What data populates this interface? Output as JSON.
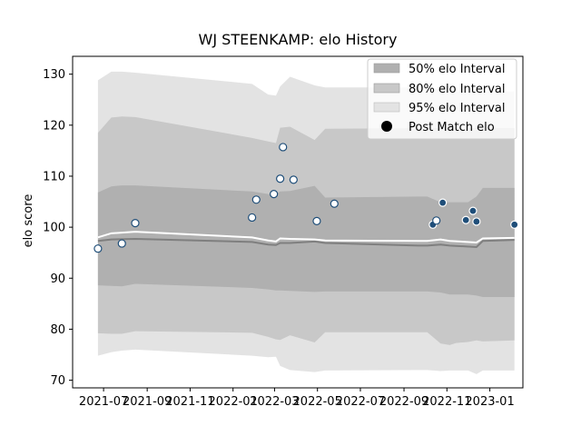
{
  "chart_data": {
    "type": "line",
    "title": "WJ STEENKAMP: elo History",
    "xlabel": "",
    "ylabel": "elo score",
    "ylim": [
      68.5,
      133.5
    ],
    "xlim": [
      "2021-05-18",
      "2023-02-17"
    ],
    "yticks": [
      70,
      80,
      90,
      100,
      110,
      120,
      130
    ],
    "xticks": [
      {
        "date": "2021-07-01",
        "label": "2021-07"
      },
      {
        "date": "2021-09-01",
        "label": "2021-09"
      },
      {
        "date": "2021-11-01",
        "label": "2021-11"
      },
      {
        "date": "2022-01-01",
        "label": "2022-01"
      },
      {
        "date": "2022-03-01",
        "label": "2022-03"
      },
      {
        "date": "2022-05-01",
        "label": "2022-05"
      },
      {
        "date": "2022-07-01",
        "label": "2022-07"
      },
      {
        "date": "2022-09-01",
        "label": "2022-09"
      },
      {
        "date": "2022-11-01",
        "label": "2022-11"
      },
      {
        "date": "2023-01-01",
        "label": "2023-01"
      }
    ],
    "grid": false,
    "legend_position": "upper-right",
    "legend": [
      {
        "label": "50% elo Interval",
        "kind": "band",
        "color": "#b0b0b0"
      },
      {
        "label": "80% elo Interval",
        "kind": "band",
        "color": "#c8c8c8"
      },
      {
        "label": "95% elo Interval",
        "kind": "band",
        "color": "#e3e3e3"
      },
      {
        "label": "Post Match elo",
        "kind": "marker",
        "color": "#000000"
      }
    ],
    "colors": {
      "band50": "#b0b0b0",
      "band80": "#c8c8c8",
      "band95": "#e3e3e3",
      "median_line": "#7f7f7f",
      "mean_line": "#ffffff",
      "marker_fill": "#ffffff",
      "marker_edge": "#1f4e79",
      "marker_filled": "#1f4e79"
    },
    "bands": {
      "dates": [
        "2021-06-23",
        "2021-07-12",
        "2021-07-27",
        "2021-08-15",
        "2022-01-28",
        "2022-02-20",
        "2022-03-03",
        "2022-03-09",
        "2022-03-23",
        "2022-04-27",
        "2022-05-12",
        "2022-09-21",
        "2022-10-04",
        "2022-10-23",
        "2022-11-05",
        "2022-11-14",
        "2022-12-01",
        "2022-12-13",
        "2022-12-22",
        "2023-02-05"
      ],
      "p95_upper": [
        128.8,
        130.5,
        130.5,
        130.3,
        128.1,
        126.0,
        125.8,
        127.6,
        129.5,
        127.8,
        127.4,
        127.4,
        127.4,
        127.0,
        126.6,
        126.6,
        126.6,
        126.6,
        126.6,
        126.6
      ],
      "p80_upper": [
        118.5,
        121.5,
        121.7,
        121.6,
        117.5,
        116.8,
        116.5,
        119.5,
        119.7,
        117.1,
        119.3,
        119.4,
        119.4,
        119.4,
        119.4,
        119.4,
        119.4,
        119.4,
        119.4,
        119.4
      ],
      "p50_upper": [
        106.8,
        108.0,
        108.2,
        108.2,
        107.0,
        106.5,
        106.5,
        107.0,
        107.1,
        108.1,
        105.8,
        106.0,
        106.0,
        104.9,
        104.9,
        104.9,
        104.9,
        106.0,
        107.7,
        107.7
      ],
      "p50_lower": [
        88.6,
        88.5,
        88.4,
        88.9,
        88.1,
        87.8,
        87.6,
        87.6,
        87.5,
        87.3,
        87.4,
        87.4,
        87.4,
        87.2,
        86.8,
        86.8,
        86.8,
        86.6,
        86.3,
        86.3
      ],
      "p80_lower": [
        79.2,
        79.1,
        79.1,
        79.6,
        79.3,
        78.5,
        78.0,
        77.9,
        78.8,
        77.4,
        79.4,
        79.4,
        79.4,
        77.2,
        76.9,
        77.3,
        77.5,
        77.8,
        77.6,
        77.8
      ],
      "p95_lower": [
        74.8,
        75.5,
        75.8,
        76.0,
        74.8,
        74.5,
        74.6,
        72.8,
        72.0,
        71.6,
        71.9,
        72.0,
        72.0,
        71.8,
        71.9,
        71.9,
        71.9,
        71.2,
        71.9,
        71.9
      ]
    },
    "median_line": {
      "dates": [
        "2021-06-23",
        "2021-07-12",
        "2021-08-15",
        "2022-01-28",
        "2022-02-20",
        "2022-03-03",
        "2022-03-09",
        "2022-03-23",
        "2022-04-27",
        "2022-05-12",
        "2022-09-21",
        "2022-10-04",
        "2022-10-23",
        "2022-11-05",
        "2022-12-13",
        "2022-12-22",
        "2023-02-05"
      ],
      "values": [
        97.3,
        97.6,
        97.7,
        97.1,
        96.6,
        96.5,
        96.9,
        96.9,
        97.2,
        96.9,
        96.4,
        96.4,
        96.6,
        96.4,
        96.1,
        97.3,
        97.5
      ]
    },
    "mean_line": {
      "dates": [
        "2021-06-23",
        "2021-07-12",
        "2021-08-15",
        "2022-01-28",
        "2022-02-20",
        "2022-03-03",
        "2022-03-09",
        "2022-03-23",
        "2022-04-27",
        "2022-05-12",
        "2022-09-21",
        "2022-10-04",
        "2022-10-23",
        "2022-11-05",
        "2022-12-13",
        "2022-12-22",
        "2023-02-05"
      ],
      "values": [
        98.0,
        98.8,
        99.1,
        98.0,
        97.4,
        97.2,
        97.8,
        97.7,
        97.6,
        97.4,
        97.3,
        97.3,
        97.6,
        97.3,
        97.0,
        97.8,
        97.9
      ]
    },
    "series": [
      {
        "name": "Post Match elo",
        "points": [
          {
            "date": "2021-06-23",
            "y": 95.8,
            "filled": false
          },
          {
            "date": "2021-07-27",
            "y": 96.8,
            "filled": false
          },
          {
            "date": "2021-08-15",
            "y": 100.8,
            "filled": false
          },
          {
            "date": "2022-01-28",
            "y": 101.9,
            "filled": false
          },
          {
            "date": "2022-02-03",
            "y": 105.4,
            "filled": false
          },
          {
            "date": "2022-02-28",
            "y": 106.5,
            "filled": false
          },
          {
            "date": "2022-03-09",
            "y": 109.5,
            "filled": false
          },
          {
            "date": "2022-03-13",
            "y": 115.7,
            "filled": false
          },
          {
            "date": "2022-03-28",
            "y": 109.3,
            "filled": false
          },
          {
            "date": "2022-04-30",
            "y": 101.2,
            "filled": false
          },
          {
            "date": "2022-05-25",
            "y": 104.6,
            "filled": false
          },
          {
            "date": "2022-10-12",
            "y": 100.5,
            "filled": true
          },
          {
            "date": "2022-10-17",
            "y": 101.3,
            "filled": false
          },
          {
            "date": "2022-10-26",
            "y": 104.8,
            "filled": true
          },
          {
            "date": "2022-11-28",
            "y": 101.4,
            "filled": true
          },
          {
            "date": "2022-12-08",
            "y": 103.2,
            "filled": true
          },
          {
            "date": "2022-12-13",
            "y": 101.1,
            "filled": true
          },
          {
            "date": "2023-02-05",
            "y": 100.5,
            "filled": true
          }
        ]
      }
    ]
  }
}
